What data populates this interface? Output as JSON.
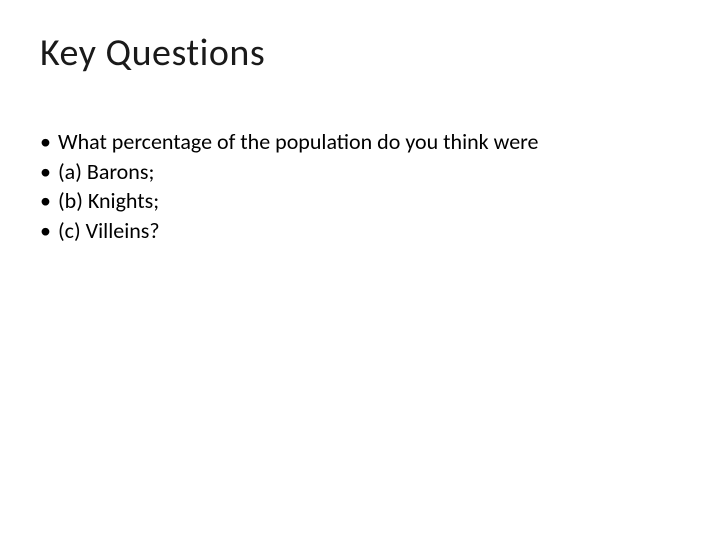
{
  "slide": {
    "title": "Key Questions",
    "bullets": [
      "What percentage of the population do you think were",
      "(a) Barons;",
      "(b) Knights;",
      "(c) Villeins?"
    ],
    "title_fontsize": 38,
    "body_fontsize": 22,
    "title_color": "#1a1a1a",
    "body_color": "#000000",
    "background_color": "#ffffff"
  }
}
